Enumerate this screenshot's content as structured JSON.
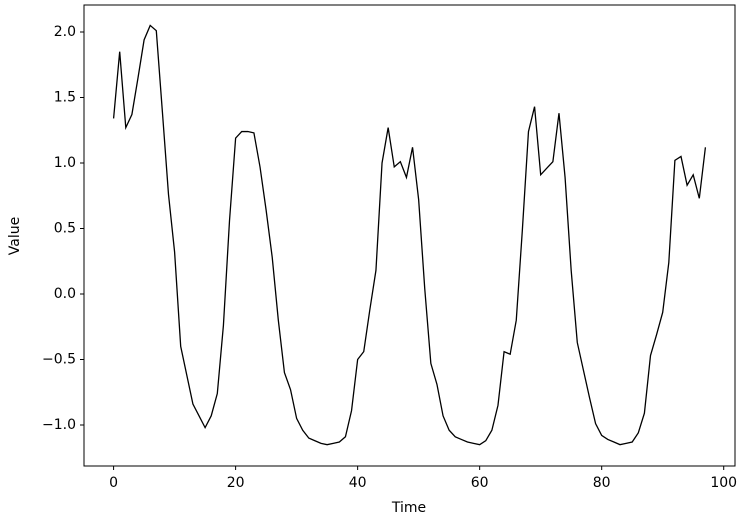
{
  "chart_data": {
    "type": "line",
    "xlabel": "Time",
    "ylabel": "Value",
    "x": [
      0,
      1,
      2,
      3,
      4,
      5,
      6,
      7,
      8,
      9,
      10,
      11,
      12,
      13,
      14,
      15,
      16,
      17,
      18,
      19,
      20,
      21,
      22,
      23,
      24,
      25,
      26,
      27,
      28,
      29,
      30,
      31,
      32,
      33,
      34,
      35,
      36,
      37,
      38,
      39,
      40,
      41,
      42,
      43,
      44,
      45,
      46,
      47,
      48,
      49,
      50,
      51,
      52,
      53,
      54,
      55,
      56,
      57,
      58,
      59,
      60,
      61,
      62,
      63,
      64,
      65,
      66,
      67,
      68,
      69,
      70,
      71,
      72,
      73,
      74,
      75,
      76,
      77,
      78,
      79,
      80,
      81,
      82,
      83,
      84,
      85,
      86,
      87,
      88,
      89,
      90,
      91,
      92,
      93,
      94,
      95,
      96,
      97
    ],
    "values": [
      1.34,
      1.85,
      1.27,
      1.37,
      1.65,
      1.94,
      2.05,
      2.01,
      1.39,
      0.76,
      0.32,
      -0.4,
      -0.62,
      -0.84,
      -0.93,
      -1.02,
      -0.93,
      -0.76,
      -0.24,
      0.56,
      1.19,
      1.24,
      1.24,
      1.23,
      0.97,
      0.64,
      0.28,
      -0.2,
      -0.6,
      -0.73,
      -0.95,
      -1.04,
      -1.1,
      -1.12,
      -1.14,
      -1.15,
      -1.14,
      -1.13,
      -1.09,
      -0.89,
      -0.5,
      -0.44,
      -0.12,
      0.18,
      1.0,
      1.27,
      0.97,
      1.01,
      0.89,
      1.12,
      0.72,
      0.04,
      -0.53,
      -0.69,
      -0.93,
      -1.04,
      -1.09,
      -1.11,
      -1.13,
      -1.14,
      -1.15,
      -1.12,
      -1.04,
      -0.85,
      -0.44,
      -0.46,
      -0.2,
      0.49,
      1.24,
      1.43,
      0.91,
      0.96,
      1.01,
      1.38,
      0.89,
      0.18,
      -0.37,
      -0.58,
      -0.79,
      -0.99,
      -1.08,
      -1.11,
      -1.13,
      -1.15,
      -1.14,
      -1.13,
      -1.06,
      -0.91,
      -0.47,
      -0.31,
      -0.14,
      0.24,
      1.02,
      1.05,
      0.83,
      0.91,
      0.73,
      1.12
    ],
    "color": "#000000",
    "xlim": [
      -4.85,
      101.85
    ],
    "xticks": [
      0,
      20,
      40,
      60,
      80,
      100
    ],
    "ylim": [
      -1.313,
      2.206
    ],
    "yticks": [
      {
        "value": -1,
        "label": "−1.0"
      },
      {
        "value": -0.5,
        "label": "−0.5"
      },
      {
        "value": 0,
        "label": "0.0"
      },
      0.5,
      {
        "value": 1,
        "label": "1.0"
      },
      1.5,
      {
        "value": 2,
        "label": "2.0"
      }
    ],
    "grid": false
  }
}
